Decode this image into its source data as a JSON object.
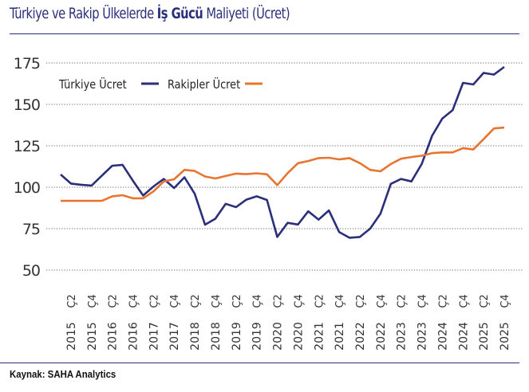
{
  "title": {
    "prefix": "Türkiye ve Rakip Ülkelerde ",
    "bold": "İş Gücü",
    "suffix": " Maliyeti (Ücret)"
  },
  "source": "Kaynak: SAHA Analytics",
  "chart_data": {
    "type": "line",
    "title": "Türkiye ve Rakip Ülkelerde İş Gücü Maliyeti (Ücret)",
    "xlabel": "",
    "ylabel": "",
    "ylim": [
      50,
      175
    ],
    "yticks": [
      50,
      75,
      100,
      125,
      150,
      175
    ],
    "grid": true,
    "legend_position": "top-left",
    "x_start": "2015 Ç1",
    "x_end": "2025 Ç4",
    "x_frequency": "quarterly",
    "xtick_labels": [
      {
        "q": "Ç2",
        "y": "2015"
      },
      {
        "q": "Ç4",
        "y": "2015"
      },
      {
        "q": "Ç2",
        "y": "2016"
      },
      {
        "q": "Ç4",
        "y": "2016"
      },
      {
        "q": "Ç2",
        "y": "2017"
      },
      {
        "q": "Ç4",
        "y": "2017"
      },
      {
        "q": "Ç2",
        "y": "2018"
      },
      {
        "q": "Ç4",
        "y": "2018"
      },
      {
        "q": "Ç2",
        "y": "2019"
      },
      {
        "q": "Ç4",
        "y": "2019"
      },
      {
        "q": "Ç2",
        "y": "2020"
      },
      {
        "q": "Ç4",
        "y": "2020"
      },
      {
        "q": "Ç2",
        "y": "2021"
      },
      {
        "q": "Ç4",
        "y": "2021"
      },
      {
        "q": "Ç2",
        "y": "2022"
      },
      {
        "q": "Ç4",
        "y": "2022"
      },
      {
        "q": "Ç2",
        "y": "2023"
      },
      {
        "q": "Ç4",
        "y": "2023"
      },
      {
        "q": "Ç2",
        "y": "2024"
      },
      {
        "q": "Ç4",
        "y": "2024"
      },
      {
        "q": "Ç2",
        "y": "2025"
      },
      {
        "q": "Ç4",
        "y": "2025"
      }
    ],
    "series": [
      {
        "name": "Türkiye Ücret",
        "color": "#2b2f7a",
        "values": [
          107.7,
          102.2,
          101.5,
          101,
          107,
          113,
          113.5,
          104,
          95,
          100.5,
          105,
          99.5,
          106,
          96,
          77.4,
          81,
          90,
          88,
          92.5,
          94.5,
          92.3,
          70,
          78.5,
          77.5,
          85.5,
          80.5,
          86,
          73,
          69.5,
          70,
          75,
          84,
          102,
          105,
          103.5,
          114,
          131,
          141.5,
          146.5,
          163,
          162,
          169,
          168,
          172.6
        ]
      },
      {
        "name": "Rakipler Ücret",
        "color": "#e8752f",
        "values": [
          91.8,
          91.8,
          91.8,
          91.8,
          91.8,
          94.5,
          95.2,
          93.3,
          93.3,
          97.5,
          103.5,
          104.8,
          110.5,
          109.8,
          106.5,
          105.3,
          106.8,
          108.2,
          107.9,
          108.4,
          107.8,
          101.3,
          108.5,
          114.5,
          115.8,
          117.6,
          117.8,
          116.8,
          117.6,
          114.5,
          110.5,
          109.6,
          114,
          117.2,
          118.2,
          119,
          120.6,
          121,
          121,
          123.6,
          122.8,
          129,
          135.5,
          136
        ]
      }
    ]
  }
}
